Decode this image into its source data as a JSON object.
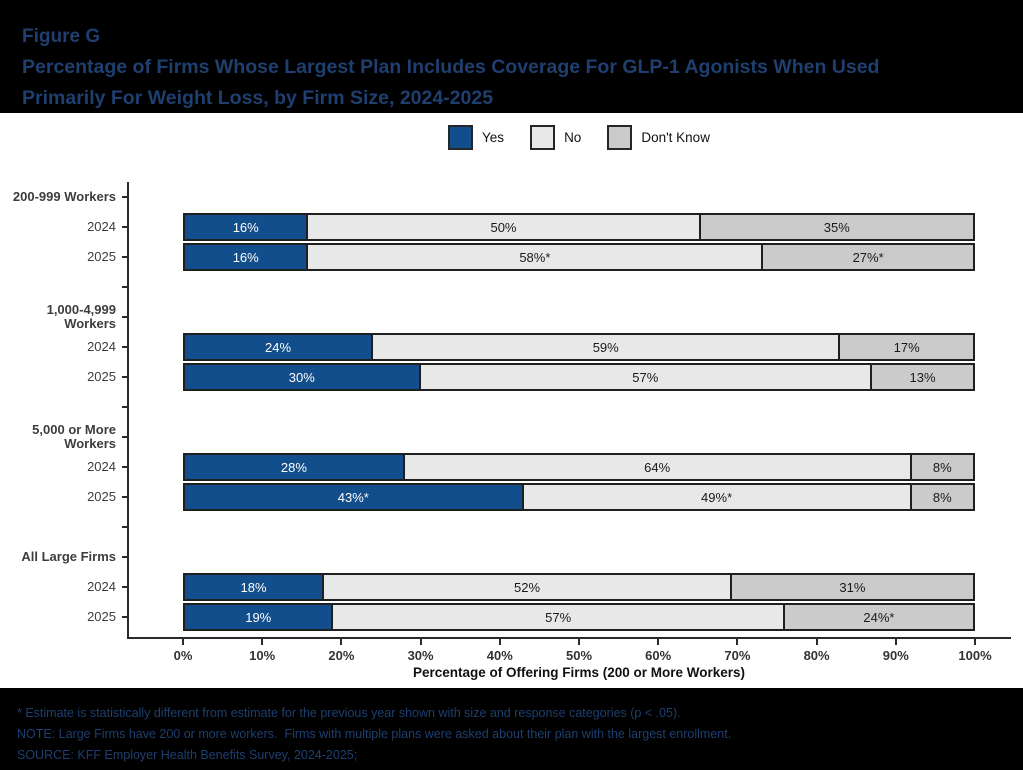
{
  "figure": {
    "label": "Figure G",
    "title_lines": [
      "Percentage of Firms Whose Largest Plan Includes Coverage For GLP-1 Agonists When Used",
      "Primarily For Weight Loss, by Firm Size, 2024-2025"
    ]
  },
  "colors": {
    "header_bg": "#000000",
    "header_text": "#1e3f6f",
    "panel_bg": "#ffffff",
    "yes_blue": "#124e8c",
    "no_light_gray": "#e8e8e8",
    "dont_know_gray": "#cbcbcb",
    "bar_border": "#1f1f1f",
    "axis": "#2a2a2a"
  },
  "chart_data": {
    "type": "bar",
    "stacked": true,
    "orientation": "horizontal",
    "title": "Percentage of Firms Whose Largest Plan Includes Coverage For GLP-1 Agonists When Used Primarily For Weight Loss, by Firm Size, 2024-2025",
    "xlabel": "Percentage of Offering Firms (200 or More Workers)",
    "ylabel": "",
    "xlim": [
      0,
      100
    ],
    "grid": false,
    "legend_position": "top-center",
    "x_ticks": [
      "0%",
      "10%",
      "20%",
      "30%",
      "40%",
      "50%",
      "60%",
      "70%",
      "80%",
      "90%",
      "100%"
    ],
    "legend": [
      {
        "label": "Yes",
        "color": "#124e8c",
        "text_color": "#ffffff"
      },
      {
        "label": "No",
        "color": "#e8e8e8",
        "text_color": "#1a1a1a"
      },
      {
        "label": "Don't Know",
        "color": "#cbcbcb",
        "text_color": "#1a1a1a"
      }
    ],
    "groups": [
      {
        "label": "200-999 Workers",
        "rows": [
          {
            "year": "2024",
            "values": [
              16,
              50,
              35
            ],
            "labels": [
              "16%",
              "50%",
              "35%"
            ]
          },
          {
            "year": "2025",
            "values": [
              16,
              58,
              27
            ],
            "labels": [
              "16%",
              "58%*",
              "27%*"
            ]
          }
        ]
      },
      {
        "label": "1,000-4,999 Workers",
        "rows": [
          {
            "year": "2024",
            "values": [
              24,
              59,
              17
            ],
            "labels": [
              "24%",
              "59%",
              "17%"
            ]
          },
          {
            "year": "2025",
            "values": [
              30,
              57,
              13
            ],
            "labels": [
              "30%",
              "57%",
              "13%"
            ]
          }
        ]
      },
      {
        "label": "5,000 or More Workers",
        "rows": [
          {
            "year": "2024",
            "values": [
              28,
              64,
              8
            ],
            "labels": [
              "28%",
              "64%",
              "8%"
            ]
          },
          {
            "year": "2025",
            "values": [
              43,
              49,
              8
            ],
            "labels": [
              "43%*",
              "49%*",
              "8%"
            ]
          }
        ]
      },
      {
        "label": "All Large Firms",
        "rows": [
          {
            "year": "2024",
            "values": [
              18,
              52,
              31
            ],
            "labels": [
              "18%",
              "52%",
              "31%"
            ]
          },
          {
            "year": "2025",
            "values": [
              19,
              57,
              24
            ],
            "labels": [
              "19%",
              "57%",
              "24%*"
            ]
          }
        ]
      }
    ]
  },
  "footnotes": [
    "* Estimate is statistically different from estimate for the previous year shown with size and response categories (p < .05).",
    "NOTE: Large Firms have 200 or more workers.  Firms with multiple plans were asked about their plan with the largest enrollment.",
    "SOURCE: KFF Employer Health Benefits Survey, 2024-2025;"
  ]
}
